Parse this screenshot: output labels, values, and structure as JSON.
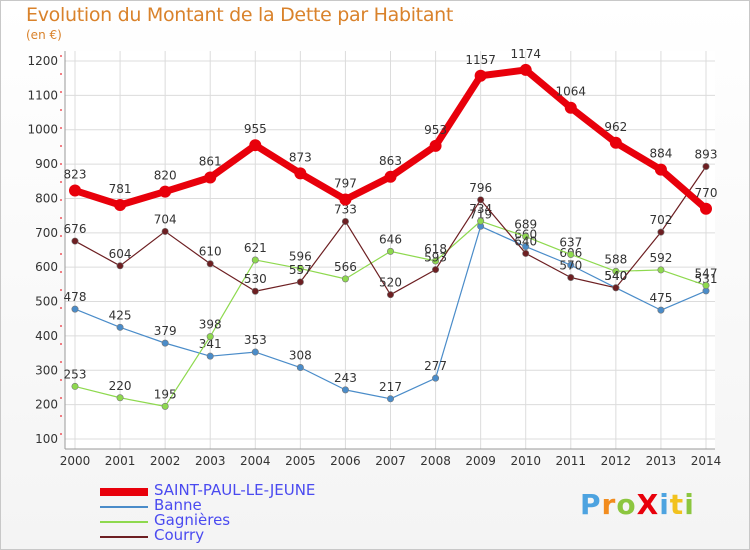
{
  "title": "Evolution du Montant de la Dette par Habitant",
  "unit_label": "(en €)",
  "brand": "ProXiti",
  "chart_data": {
    "type": "line",
    "title": "Evolution du Montant de la Dette par Habitant",
    "ylabel": "(en €)",
    "xlabel": "",
    "ylim": [
      100,
      1200
    ],
    "yticks": [
      100,
      200,
      300,
      400,
      500,
      600,
      700,
      800,
      900,
      1000,
      1100,
      1200
    ],
    "grid": true,
    "legend_position": "bottom-left",
    "x": [
      "2000",
      "2001",
      "2002",
      "2003",
      "2004",
      "2005",
      "2006",
      "2007",
      "2008",
      "2009",
      "2010",
      "2011",
      "2012",
      "2013",
      "2014"
    ],
    "series": [
      {
        "name": "SAINT-PAUL-LE-JEUNE",
        "color": "#e8000b",
        "width": 7,
        "values": [
          823,
          781,
          820,
          861,
          955,
          873,
          797,
          863,
          953,
          1157,
          1174,
          1064,
          962,
          884,
          770
        ]
      },
      {
        "name": "Banne",
        "color": "#4a8cc9",
        "width": 1.2,
        "values": [
          478,
          425,
          379,
          341,
          353,
          308,
          243,
          217,
          277,
          719,
          660,
          606,
          540,
          475,
          531
        ]
      },
      {
        "name": "Gagnières",
        "color": "#8ed94e",
        "width": 1.2,
        "values": [
          253,
          220,
          195,
          398,
          621,
          596,
          566,
          646,
          618,
          734,
          689,
          637,
          588,
          592,
          547
        ]
      },
      {
        "name": "Courry",
        "color": "#6d1f22",
        "width": 1.2,
        "values": [
          676,
          604,
          704,
          610,
          530,
          557,
          733,
          520,
          593,
          796,
          640,
          570,
          540,
          702,
          893
        ]
      }
    ]
  }
}
